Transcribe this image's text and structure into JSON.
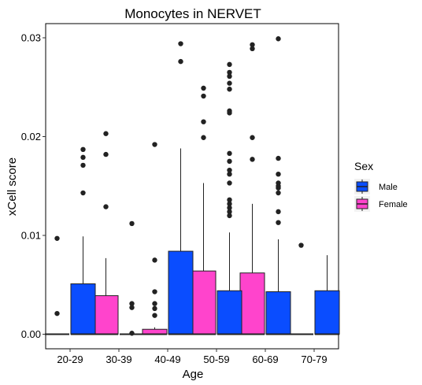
{
  "chart_data": {
    "type": "boxplot",
    "title": "Monocytes in NERVET",
    "xlabel": "Age",
    "ylabel": "xCell score",
    "categories": [
      "20-29",
      "30-39",
      "40-49",
      "50-59",
      "60-69",
      "70-79"
    ],
    "ylim": [
      -0.0015,
      0.0305
    ],
    "yticks": [
      0.0,
      0.01,
      0.02,
      0.03
    ],
    "ytick_labels": [
      "0.00",
      "0.01",
      "0.02",
      "0.03"
    ],
    "grid": false,
    "legend": {
      "title": "Sex",
      "placement": "right",
      "entries": [
        {
          "name": "Male",
          "color": "#0A4DFF"
        },
        {
          "name": "Female",
          "color": "#FF44CC"
        }
      ]
    },
    "series": [
      {
        "name": "Female",
        "color": "#FF44CC",
        "boxes": [
          {
            "q1": 0.0,
            "median": 0.0,
            "q3": 0.0,
            "whisker_low": 0.0,
            "whisker_high": 0.0,
            "outliers": [
              0.0021,
              0.0097
            ]
          },
          {
            "q1": 0.0,
            "median": 0.0,
            "q3": 0.0039,
            "whisker_low": 0.0,
            "whisker_high": 0.0077,
            "outliers": [
              0.0129,
              0.0182,
              0.0203
            ]
          },
          {
            "q1": 0.0,
            "median": 0.0,
            "q3": 0.0005,
            "whisker_low": 0.0,
            "whisker_high": 0.0007,
            "outliers": [
              0.0019,
              0.0026,
              0.0031,
              0.0043,
              0.0075,
              0.0192
            ]
          },
          {
            "q1": 0.0,
            "median": 0.0,
            "q3": 0.0064,
            "whisker_low": 0.0,
            "whisker_high": 0.0153,
            "outliers": [
              0.0199,
              0.0215,
              0.0241,
              0.0249
            ]
          },
          {
            "q1": 0.0,
            "median": 0.0,
            "q3": 0.0062,
            "whisker_low": 0.0,
            "whisker_high": 0.0132,
            "outliers": [
              0.0177,
              0.0199,
              0.0289,
              0.0293
            ]
          },
          {
            "q1": 0.0,
            "median": 0.0,
            "q3": 0.0,
            "whisker_low": 0.0,
            "whisker_high": 0.0,
            "outliers": [
              0.009
            ]
          }
        ]
      },
      {
        "name": "Male",
        "color": "#0A4DFF",
        "boxes": [
          {
            "q1": 0.0,
            "median": 0.0,
            "q3": 0.0051,
            "whisker_low": 0.0,
            "whisker_high": 0.0099,
            "outliers": [
              0.0143,
              0.0171,
              0.0179,
              0.0187
            ]
          },
          {
            "q1": 0.0,
            "median": 0.0,
            "q3": 0.0,
            "whisker_low": 0.0,
            "whisker_high": 0.0,
            "outliers": [
              0.0001,
              0.0027,
              0.0031,
              0.0112
            ]
          },
          {
            "q1": 0.0,
            "median": 0.0,
            "q3": 0.0084,
            "whisker_low": 0.0,
            "whisker_high": 0.0188,
            "outliers": [
              0.0276,
              0.0294
            ]
          },
          {
            "q1": 0.0,
            "median": 0.0,
            "q3": 0.0044,
            "whisker_low": 0.0,
            "whisker_high": 0.0103,
            "outliers": [
              0.012,
              0.0124,
              0.0128,
              0.0132,
              0.0136,
              0.0153,
              0.0162,
              0.0166,
              0.0175,
              0.0183,
              0.0224,
              0.0226,
              0.0248,
              0.0254,
              0.0261,
              0.0265,
              0.0273
            ]
          },
          {
            "q1": 0.0,
            "median": 0.0,
            "q3": 0.0043,
            "whisker_low": 0.0,
            "whisker_high": 0.0096,
            "outliers": [
              0.0113,
              0.0124,
              0.0143,
              0.0148,
              0.015,
              0.0153,
              0.0162,
              0.0178,
              0.0299
            ]
          },
          {
            "q1": 0.0,
            "median": 0.0,
            "q3": 0.0044,
            "whisker_low": 0.0,
            "whisker_high": 0.008,
            "outliers": []
          }
        ]
      }
    ]
  }
}
